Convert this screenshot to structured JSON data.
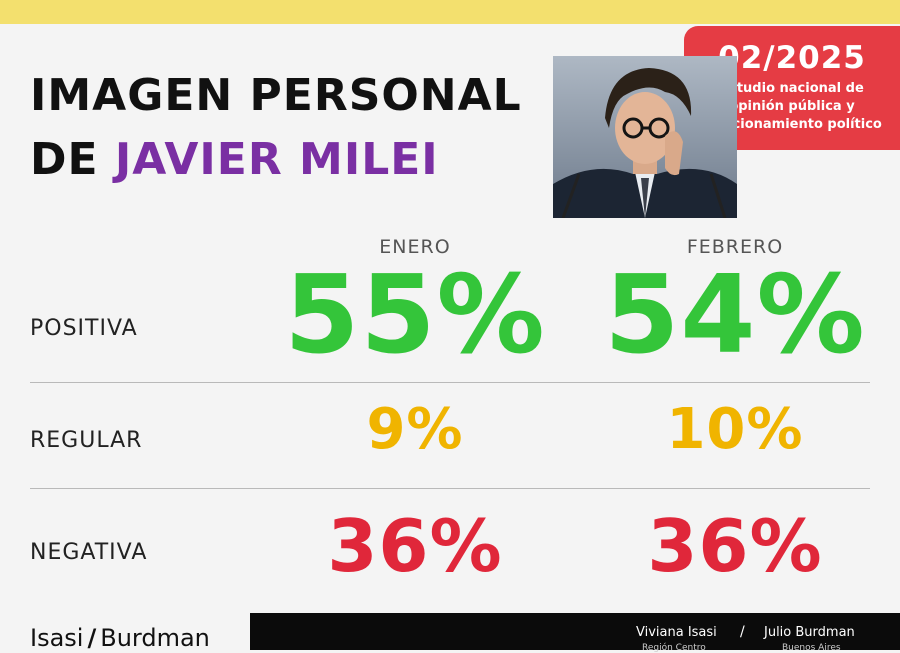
{
  "header": {
    "title_line1": "IMAGEN PERSONAL",
    "title_line2_prefix": "DE",
    "title_line2_name": "JAVIER MILEI",
    "accent_color": "#7a2fa3"
  },
  "badge": {
    "date": "02/2025",
    "line1": "Estudio nacional de",
    "line2": "opinión pública y",
    "line3": "posicionamiento político",
    "color": "#e53c44"
  },
  "chart_data": {
    "type": "table",
    "columns": [
      "ENERO",
      "FEBRERO"
    ],
    "rows": [
      {
        "label": "POSITIVA",
        "values": [
          "55%",
          "54%"
        ],
        "numeric": [
          55,
          54
        ],
        "color": "#34c53a"
      },
      {
        "label": "REGULAR",
        "values": [
          "9%",
          "10%"
        ],
        "numeric": [
          9,
          10
        ],
        "color": "#f0b400"
      },
      {
        "label": "NEGATIVA",
        "values": [
          "36%",
          "36%"
        ],
        "numeric": [
          36,
          36
        ],
        "color": "#e0273a"
      }
    ]
  },
  "footer": {
    "brand_left": "Isasi",
    "brand_slash": "/",
    "brand_right": "Burdman",
    "person1": "Viviana Isasi",
    "person1_sub": "Región Centro",
    "separator": "/",
    "person2": "Julio Burdman",
    "person2_sub": "Buenos Aires"
  }
}
